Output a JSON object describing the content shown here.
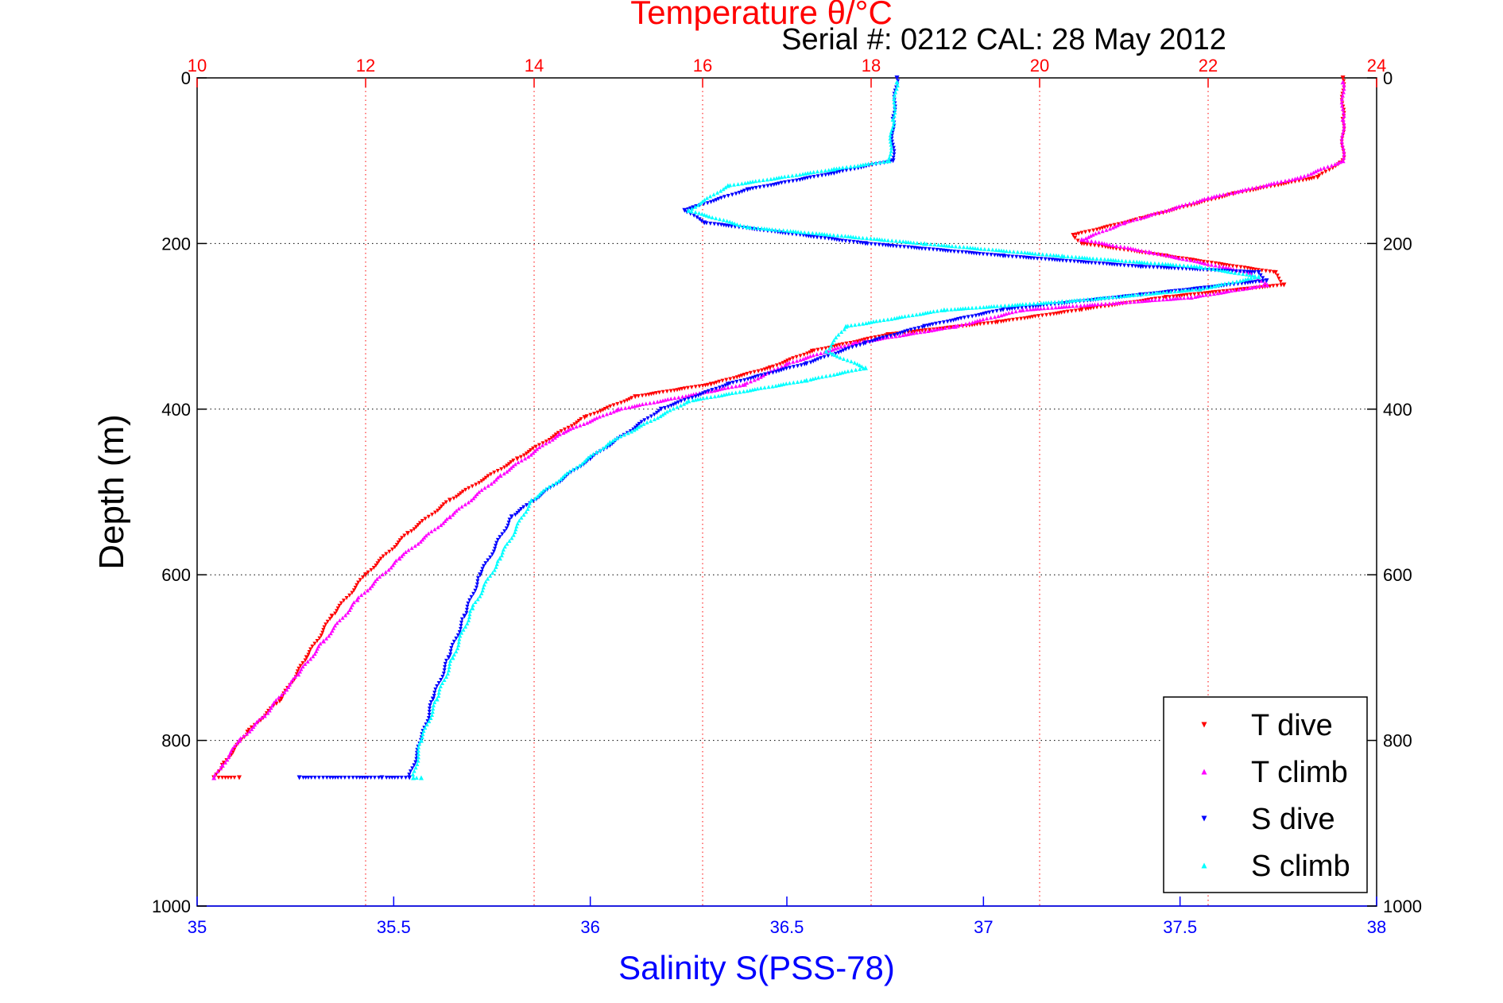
{
  "chart_data": {
    "type": "scatter",
    "title": "Temperature θ/°C",
    "subtitle": "Serial #: 0212  CAL: 28 May 2012",
    "xlabel": "Salinity S(PSS-78)",
    "ylabel": "Depth (m)",
    "x_top": {
      "label": "Temperature θ/°C",
      "lim": [
        10,
        24
      ],
      "ticks": [
        "10",
        "12",
        "14",
        "16",
        "18",
        "20",
        "22",
        "24"
      ],
      "color": "#ff0000"
    },
    "x_bottom": {
      "label": "Salinity S(PSS-78)",
      "lim": [
        35,
        38
      ],
      "ticks": [
        "35",
        "35.5",
        "36",
        "36.5",
        "37",
        "37.5",
        "38"
      ],
      "color": "#0000ff"
    },
    "y": {
      "lim": [
        0,
        1000
      ],
      "reversed": true,
      "ticks": [
        "0",
        "200",
        "400",
        "600",
        "800",
        "1000"
      ]
    },
    "grid": "dotted at temperature and depth ticks",
    "legend_position": "bottom-right",
    "series": [
      {
        "name": "T dive",
        "axis": "temperature",
        "color": "#ff0000",
        "marker": "triangle-down",
        "points": [
          [
            23.6,
            0
          ],
          [
            23.6,
            50
          ],
          [
            23.6,
            100
          ],
          [
            23.3,
            120
          ],
          [
            22.3,
            140
          ],
          [
            21.2,
            170
          ],
          [
            20.4,
            190
          ],
          [
            20.5,
            200
          ],
          [
            21.5,
            215
          ],
          [
            22.8,
            235
          ],
          [
            22.9,
            250
          ],
          [
            21.5,
            265
          ],
          [
            20.5,
            280
          ],
          [
            19.5,
            295
          ],
          [
            18.2,
            310
          ],
          [
            17.3,
            330
          ],
          [
            16.8,
            350
          ],
          [
            16.1,
            370
          ],
          [
            15.2,
            385
          ],
          [
            14.6,
            410
          ],
          [
            13.8,
            460
          ],
          [
            13.0,
            510
          ],
          [
            12.5,
            550
          ],
          [
            12.0,
            600
          ],
          [
            11.6,
            650
          ],
          [
            11.3,
            700
          ],
          [
            11.0,
            750
          ],
          [
            10.6,
            790
          ],
          [
            10.3,
            830
          ],
          [
            10.2,
            845
          ],
          [
            10.5,
            845
          ]
        ]
      },
      {
        "name": "T climb",
        "axis": "temperature",
        "color": "#ff00ff",
        "marker": "triangle-up",
        "points": [
          [
            23.6,
            5
          ],
          [
            23.6,
            50
          ],
          [
            23.6,
            100
          ],
          [
            23.1,
            120
          ],
          [
            22.0,
            145
          ],
          [
            21.0,
            175
          ],
          [
            20.5,
            195
          ],
          [
            21.3,
            210
          ],
          [
            22.5,
            235
          ],
          [
            22.7,
            250
          ],
          [
            21.8,
            265
          ],
          [
            19.8,
            280
          ],
          [
            19.0,
            300
          ],
          [
            17.8,
            320
          ],
          [
            17.0,
            345
          ],
          [
            16.5,
            370
          ],
          [
            15.0,
            400
          ],
          [
            14.3,
            430
          ],
          [
            13.6,
            480
          ],
          [
            13.0,
            530
          ],
          [
            12.4,
            580
          ],
          [
            11.9,
            630
          ],
          [
            11.5,
            680
          ],
          [
            11.2,
            720
          ],
          [
            10.8,
            770
          ],
          [
            10.5,
            800
          ],
          [
            10.3,
            830
          ],
          [
            10.2,
            845
          ]
        ]
      },
      {
        "name": "S dive",
        "axis": "salinity",
        "color": "#0000ff",
        "marker": "triangle-down",
        "points": [
          [
            36.78,
            0
          ],
          [
            36.77,
            50
          ],
          [
            36.77,
            100
          ],
          [
            36.62,
            115
          ],
          [
            36.4,
            135
          ],
          [
            36.24,
            160
          ],
          [
            36.29,
            175
          ],
          [
            36.7,
            200
          ],
          [
            37.05,
            215
          ],
          [
            37.4,
            228
          ],
          [
            37.7,
            235
          ],
          [
            37.72,
            245
          ],
          [
            37.4,
            262
          ],
          [
            37.05,
            280
          ],
          [
            36.85,
            300
          ],
          [
            36.7,
            320
          ],
          [
            36.55,
            345
          ],
          [
            36.35,
            370
          ],
          [
            36.18,
            400
          ],
          [
            36.0,
            460
          ],
          [
            35.8,
            530
          ],
          [
            35.72,
            600
          ],
          [
            35.68,
            650
          ],
          [
            35.64,
            700
          ],
          [
            35.6,
            750
          ],
          [
            35.57,
            800
          ],
          [
            35.54,
            845
          ],
          [
            35.47,
            845
          ],
          [
            35.26,
            845
          ]
        ]
      },
      {
        "name": "S climb",
        "axis": "salinity",
        "color": "#00ffff",
        "marker": "triangle-up",
        "points": [
          [
            36.78,
            5
          ],
          [
            36.77,
            50
          ],
          [
            36.76,
            100
          ],
          [
            36.62,
            110
          ],
          [
            36.35,
            130
          ],
          [
            36.25,
            160
          ],
          [
            36.4,
            180
          ],
          [
            36.85,
            200
          ],
          [
            37.2,
            215
          ],
          [
            37.55,
            228
          ],
          [
            37.7,
            240
          ],
          [
            37.55,
            255
          ],
          [
            37.2,
            270
          ],
          [
            36.9,
            280
          ],
          [
            36.65,
            300
          ],
          [
            36.6,
            330
          ],
          [
            36.7,
            350
          ],
          [
            36.55,
            365
          ],
          [
            36.25,
            390
          ],
          [
            36.05,
            440
          ],
          [
            35.85,
            510
          ],
          [
            35.77,
            580
          ],
          [
            35.7,
            640
          ],
          [
            35.65,
            700
          ],
          [
            35.61,
            750
          ],
          [
            35.57,
            800
          ],
          [
            35.55,
            845
          ],
          [
            35.57,
            845
          ]
        ]
      }
    ]
  }
}
